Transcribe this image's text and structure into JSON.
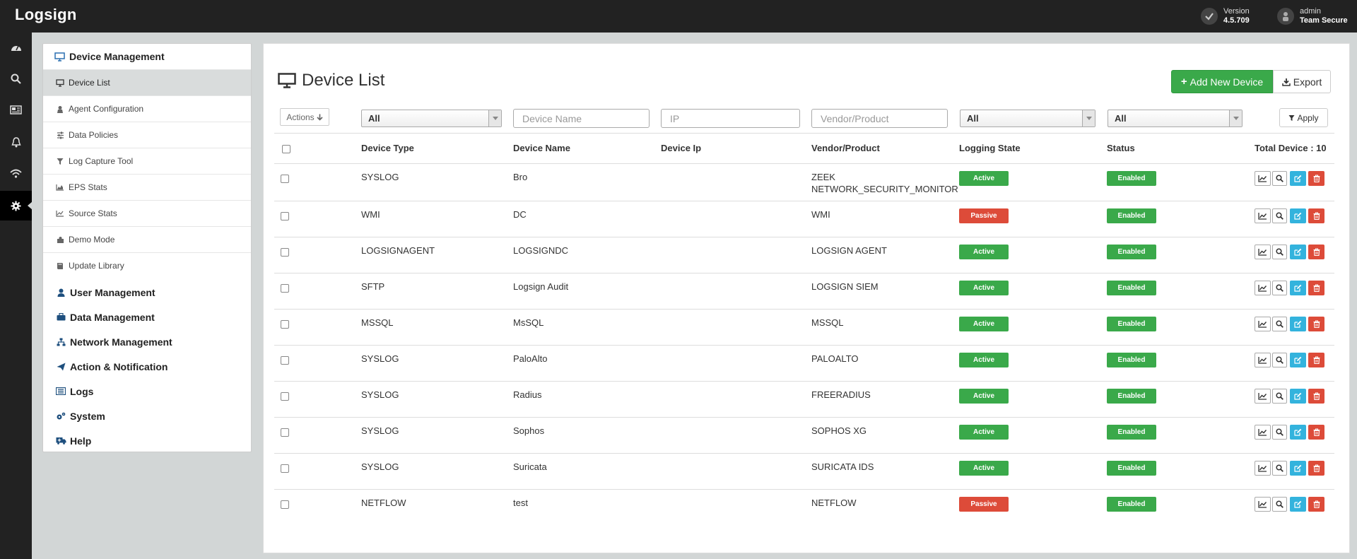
{
  "app": {
    "logo": "Logsign"
  },
  "topbar": {
    "version_label": "Version",
    "version_value": "4.5.709",
    "user_name": "admin",
    "user_team": "Team Secure"
  },
  "rail": [
    "dashboard-icon",
    "search-icon",
    "newspaper-icon",
    "bell-icon",
    "wifi-icon",
    "gear-icon"
  ],
  "menu": {
    "header": "Device Management",
    "items": [
      {
        "label": "Device List",
        "icon": "desktop-icon"
      },
      {
        "label": "Agent Configuration",
        "icon": "user-secret-icon"
      },
      {
        "label": "Data Policies",
        "icon": "sliders-icon"
      },
      {
        "label": "Log Capture Tool",
        "icon": "filter-icon"
      },
      {
        "label": "EPS Stats",
        "icon": "area-chart-icon"
      },
      {
        "label": "Source Stats",
        "icon": "line-chart-icon"
      },
      {
        "label": "Demo Mode",
        "icon": "puzzle-icon"
      },
      {
        "label": "Update Library",
        "icon": "book-icon"
      }
    ],
    "sections": [
      {
        "label": "User Management",
        "icon": "user-icon"
      },
      {
        "label": "Data Management",
        "icon": "briefcase-icon"
      },
      {
        "label": "Network Management",
        "icon": "sitemap-icon"
      },
      {
        "label": "Action & Notification",
        "icon": "paper-plane-icon"
      },
      {
        "label": "Logs",
        "icon": "list-icon"
      },
      {
        "label": "System",
        "icon": "cogs-icon"
      },
      {
        "label": "Help",
        "icon": "ambulance-icon"
      }
    ]
  },
  "page": {
    "title": "Device List",
    "add_button": "Add New Device",
    "export_button": "Export"
  },
  "filters": {
    "actions_label": "Actions",
    "device_type": "All",
    "device_name_placeholder": "Device Name",
    "ip_placeholder": "IP",
    "vendor_placeholder": "Vendor/Product",
    "logging_state": "All",
    "status": "All",
    "apply_label": "Apply"
  },
  "table": {
    "columns": [
      "Device Type",
      "Device Name",
      "Device Ip",
      "Vendor/Product",
      "Logging State",
      "Status"
    ],
    "total_label": "Total Device : 10",
    "rows": [
      {
        "type": "SYSLOG",
        "name": "Bro",
        "ip": "",
        "vendor": "ZEEK",
        "vendor2": "NETWORK_SECURITY_MONITOR",
        "logging": "Active",
        "status": "Enabled"
      },
      {
        "type": "WMI",
        "name": "DC",
        "ip": "",
        "vendor": "WMI",
        "vendor2": "",
        "logging": "Passive",
        "status": "Enabled"
      },
      {
        "type": "LOGSIGNAGENT",
        "name": "LOGSIGNDC",
        "ip": "",
        "vendor": "LOGSIGN AGENT",
        "vendor2": "",
        "logging": "Active",
        "status": "Enabled"
      },
      {
        "type": "SFTP",
        "name": "Logsign Audit",
        "ip": "",
        "vendor": "LOGSIGN SIEM",
        "vendor2": "",
        "logging": "Active",
        "status": "Enabled"
      },
      {
        "type": "MSSQL",
        "name": "MsSQL",
        "ip": "",
        "vendor": "MSSQL",
        "vendor2": "",
        "logging": "Active",
        "status": "Enabled"
      },
      {
        "type": "SYSLOG",
        "name": "PaloAlto",
        "ip": "",
        "vendor": "PALOALTO",
        "vendor2": "",
        "logging": "Active",
        "status": "Enabled"
      },
      {
        "type": "SYSLOG",
        "name": "Radius",
        "ip": "",
        "vendor": "FREERADIUS",
        "vendor2": "",
        "logging": "Active",
        "status": "Enabled"
      },
      {
        "type": "SYSLOG",
        "name": "Sophos",
        "ip": "",
        "vendor": "SOPHOS XG",
        "vendor2": "",
        "logging": "Active",
        "status": "Enabled"
      },
      {
        "type": "SYSLOG",
        "name": "Suricata",
        "ip": "",
        "vendor": "SURICATA IDS",
        "vendor2": "",
        "logging": "Active",
        "status": "Enabled"
      },
      {
        "type": "NETFLOW",
        "name": "test",
        "ip": "",
        "vendor": "NETFLOW",
        "vendor2": "",
        "logging": "Passive",
        "status": "Enabled"
      }
    ]
  },
  "colors": {
    "success": "#3aa94a",
    "danger": "#dd4b39",
    "info": "#33b3dd",
    "topbar": "#222222"
  }
}
